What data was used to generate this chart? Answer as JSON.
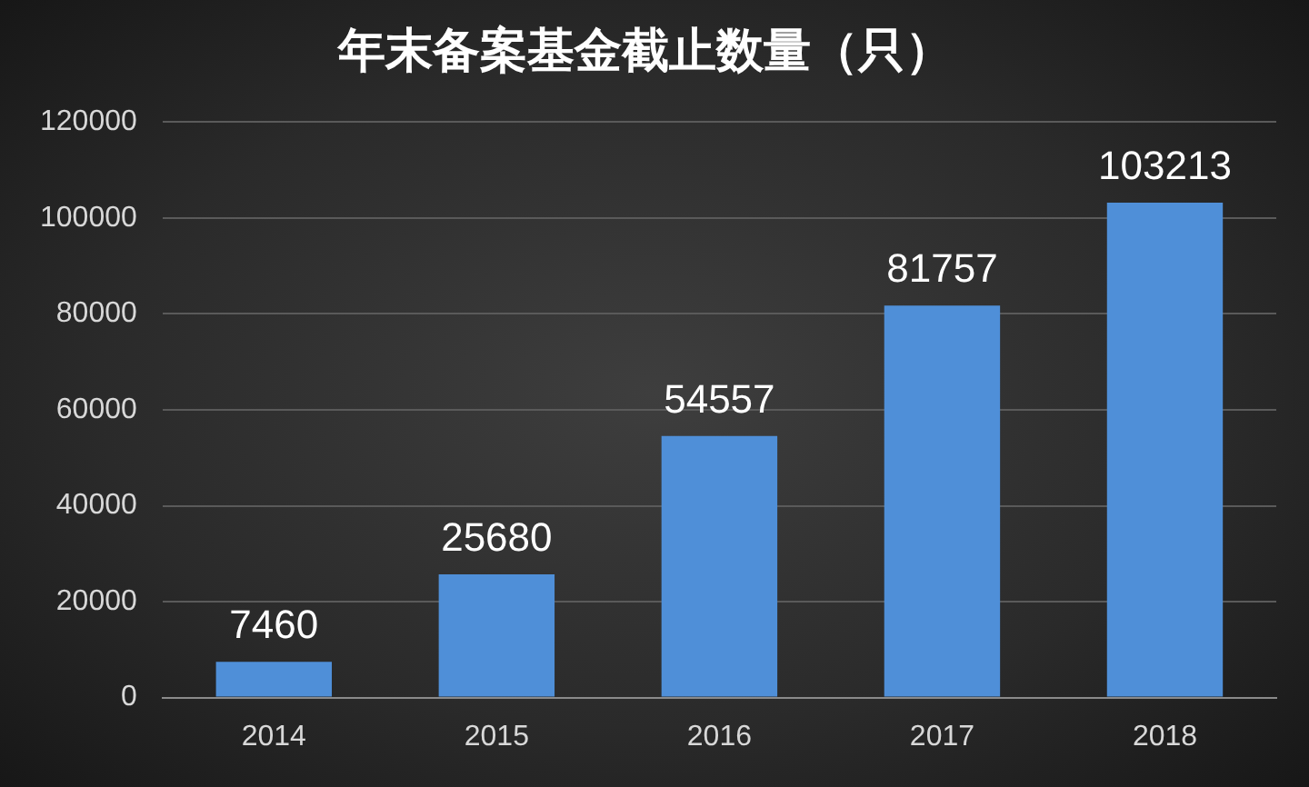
{
  "chart_data": {
    "type": "bar",
    "title": "年末备案基金截止数量（只）",
    "categories": [
      "2014",
      "2015",
      "2016",
      "2017",
      "2018"
    ],
    "values": [
      7460,
      25680,
      54557,
      81757,
      103213
    ],
    "color": "#4f8fd8",
    "ylim": [
      0,
      120000
    ],
    "yticks": [
      0,
      20000,
      40000,
      60000,
      80000,
      100000,
      120000
    ],
    "grid": "y",
    "data_labels": true,
    "legend": false
  }
}
